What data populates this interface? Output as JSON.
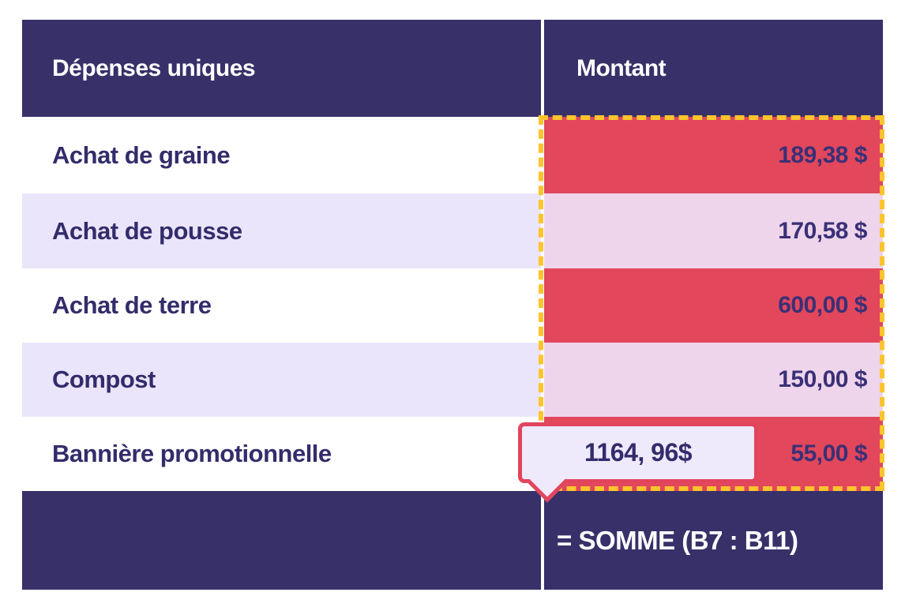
{
  "table": {
    "columns": {
      "expenses": "Dépenses uniques",
      "amount": "Montant"
    },
    "rows": [
      {
        "label": "Achat de graine",
        "amount": "189,38 $"
      },
      {
        "label": "Achat de pousse",
        "amount": "170,58 $"
      },
      {
        "label": "Achat de terre",
        "amount": "600,00 $"
      },
      {
        "label": "Compost",
        "amount": "150,00 $"
      },
      {
        "label": "Bannière promotionnelle",
        "amount": "55,00 $"
      }
    ],
    "footer": {
      "formula": "= SOMME (B7 : B11)"
    }
  },
  "tooltip": {
    "value": "1164, 96$"
  },
  "colors": {
    "header_navy": "#373069",
    "cell_red": "#e2475c",
    "cell_pink": "#eed5ec",
    "row_lavender": "#ebe5fb",
    "selection_yellow": "#fcc42d",
    "tooltip_bg": "#efe9fc",
    "tooltip_border": "#e2445c",
    "text_navy": "#332c6b",
    "text_white": "#ffffff"
  }
}
